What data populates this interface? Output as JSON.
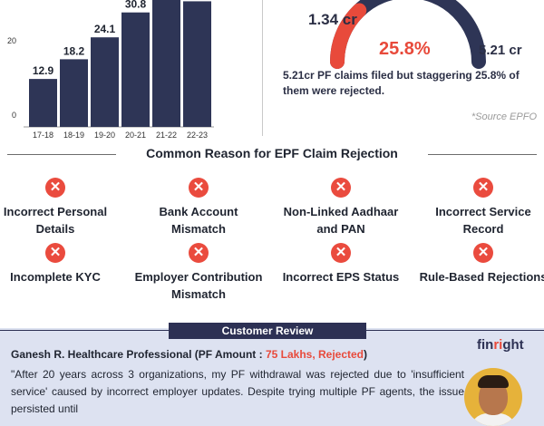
{
  "chart_data": [
    {
      "type": "bar",
      "categories": [
        "17-18",
        "18-19",
        "19-20",
        "20-21",
        "21-22",
        "22-23"
      ],
      "values": [
        12.9,
        18.2,
        24.1,
        30.8,
        35.0,
        33.8
      ],
      "value_labels": [
        "12.9",
        "18.2",
        "24.1",
        "30.8",
        "",
        "33.8"
      ],
      "yticks": [
        "0",
        "20"
      ],
      "ylim": [
        0,
        36
      ],
      "bar_color": "#2e3556",
      "grid": false
    },
    {
      "type": "gauge",
      "rejected_fraction": 0.258,
      "rejected_label": "1.34 cr",
      "filed_label": "5.21 cr",
      "center_label": "25.8%",
      "colors": {
        "rejected": "#e84a3b",
        "filed": "#2e3556"
      }
    }
  ],
  "gauge": {
    "caption": "5.21cr PF claims filed but staggering 25.8% of them were rejected.",
    "source": "*Source EPFO"
  },
  "reasons": {
    "title": "Common Reason for EPF Claim Rejection",
    "icon": "cross-circle-icon",
    "icon_glyph": "✕",
    "icon_color": "#ea4b3e",
    "items": [
      {
        "label": "Incorrect Personal Details"
      },
      {
        "label": "Bank Account Mismatch"
      },
      {
        "label": "Non-Linked Aadhaar and PAN"
      },
      {
        "label": "Incorrect Service Record"
      },
      {
        "label": "Incomplete KYC"
      },
      {
        "label": "Employer Contribution Mismatch"
      },
      {
        "label": "Incorrect EPS Status"
      },
      {
        "label": "Rule-Based Rejections"
      }
    ]
  },
  "review": {
    "tab": "Customer Review",
    "name": "Ganesh R. Healthcare Professional (PF Amount : ",
    "amount": "75 Lakhs, Rejected",
    "name_close": ")",
    "logo_a": "fin",
    "logo_b": "ri",
    "logo_c": "ght",
    "text": "\"After 20 years across 3 organizations, my PF withdrawal was rejected due to 'insufficient service' caused by incorrect employer updates. Despite trying multiple PF agents, the issue persisted until",
    "background": "#dde2f1",
    "tab_color": "#2d3154"
  }
}
